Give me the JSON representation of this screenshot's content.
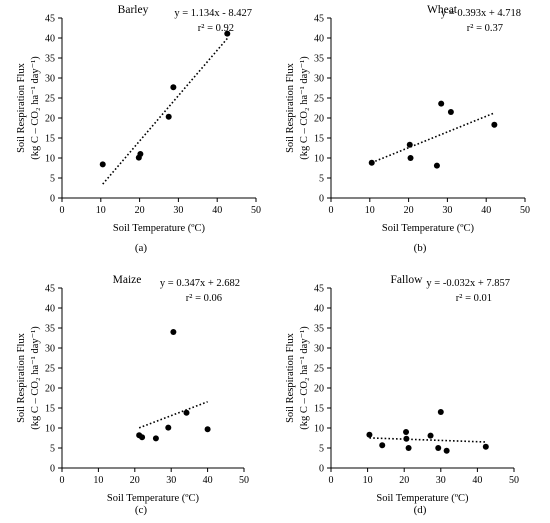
{
  "chart_data": [
    {
      "type": "scatter",
      "panel": "(a)",
      "title": "Barley",
      "equation": "y = 1.134x - 8.427",
      "r2": "r² = 0.92",
      "xlabel": "Soil Temperature (ºC)",
      "ylabel_line1": "Soil Respiration Flux",
      "ylabel_line2": "(kg C – CO₂ ha⁻¹ day⁻¹)",
      "xlim": [
        0,
        50
      ],
      "ylim": [
        0,
        45
      ],
      "xticks": [
        0,
        10,
        20,
        30,
        40,
        50
      ],
      "yticks": [
        0,
        5,
        10,
        15,
        20,
        25,
        30,
        35,
        40,
        45
      ],
      "points": [
        [
          10.5,
          8.4
        ],
        [
          19.8,
          10.1
        ],
        [
          20.2,
          11.0
        ],
        [
          27.5,
          20.3
        ],
        [
          28.7,
          27.7
        ],
        [
          42.6,
          41.1
        ]
      ],
      "trendline": {
        "slope": 1.134,
        "intercept": -8.427,
        "x_range": [
          10.5,
          42.6
        ]
      },
      "grid": false
    },
    {
      "type": "scatter",
      "panel": "(b)",
      "title": "Wheat",
      "equation": "y = 0.393x + 4.718",
      "r2": "r² = 0.37",
      "xlabel": "Soil Temperature (ºC)",
      "ylabel_line1": "Soil Respiration Flux",
      "ylabel_line2": "(kg C – CO₂ ha⁻¹ day⁻¹)",
      "xlim": [
        0,
        50
      ],
      "ylim": [
        0,
        45
      ],
      "xticks": [
        0,
        10,
        20,
        30,
        40,
        50
      ],
      "yticks": [
        0,
        5,
        10,
        15,
        20,
        25,
        30,
        35,
        40,
        45
      ],
      "points": [
        [
          10.5,
          8.8
        ],
        [
          20.3,
          13.3
        ],
        [
          20.5,
          10.0
        ],
        [
          27.3,
          8.1
        ],
        [
          28.4,
          23.6
        ],
        [
          30.9,
          21.5
        ],
        [
          42.1,
          18.3
        ]
      ],
      "trendline": {
        "slope": 0.393,
        "intercept": 4.718,
        "x_range": [
          10.5,
          42.1
        ]
      },
      "grid": false
    },
    {
      "type": "scatter",
      "panel": "(c)",
      "title": "Maize",
      "equation": "y = 0.347x + 2.682",
      "r2": "r² = 0.06",
      "xlabel": "Soil Temperature (ºC)",
      "ylabel_line1": "Soil Respiration Flux",
      "ylabel_line2": "(kg C – CO₂ ha⁻¹ day⁻¹)",
      "xlim": [
        0,
        50
      ],
      "ylim": [
        0,
        45
      ],
      "xticks": [
        0,
        10,
        20,
        30,
        40,
        50
      ],
      "yticks": [
        0,
        5,
        10,
        15,
        20,
        25,
        30,
        35,
        40,
        45
      ],
      "points": [
        [
          21.2,
          8.2
        ],
        [
          22.0,
          7.7
        ],
        [
          25.8,
          7.4
        ],
        [
          29.2,
          10.1
        ],
        [
          30.6,
          34.0
        ],
        [
          34.2,
          13.8
        ],
        [
          40.0,
          9.7
        ]
      ],
      "trendline": {
        "slope": 0.347,
        "intercept": 2.682,
        "x_range": [
          21.2,
          40.0
        ]
      },
      "grid": false
    },
    {
      "type": "scatter",
      "panel": "(d)",
      "title": "Fallow",
      "equation": "y = -0.032x + 7.857",
      "r2": "r² = 0.01",
      "xlabel": "Soil Temperature (ºC)",
      "ylabel_line1": "Soil Respiration Flux",
      "ylabel_line2": "(kg C – CO₂ ha⁻¹ day⁻¹)",
      "xlim": [
        0,
        50
      ],
      "ylim": [
        0,
        45
      ],
      "xticks": [
        0,
        10,
        20,
        30,
        40,
        50
      ],
      "yticks": [
        0,
        5,
        10,
        15,
        20,
        25,
        30,
        35,
        40,
        45
      ],
      "points": [
        [
          10.5,
          8.3
        ],
        [
          14.0,
          5.7
        ],
        [
          20.5,
          9.0
        ],
        [
          20.6,
          7.3
        ],
        [
          21.2,
          5.0
        ],
        [
          27.2,
          8.1
        ],
        [
          29.3,
          5.0
        ],
        [
          30.0,
          14.0
        ],
        [
          31.6,
          4.3
        ],
        [
          42.3,
          5.3
        ]
      ],
      "trendline": {
        "slope": -0.032,
        "intercept": 7.857,
        "x_range": [
          10.5,
          42.3
        ]
      },
      "grid": false
    }
  ]
}
